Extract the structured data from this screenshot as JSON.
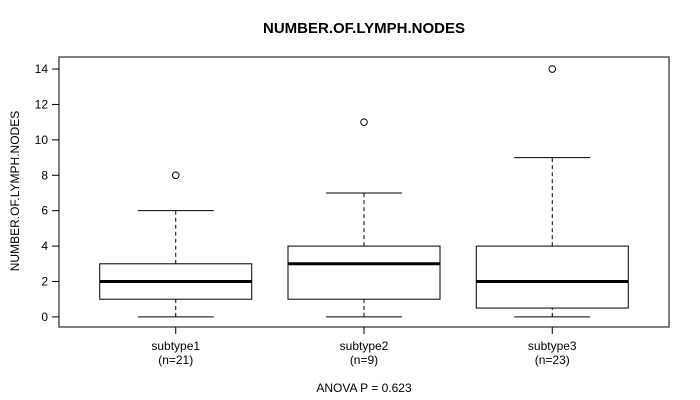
{
  "colors": {
    "foreground": "#000000",
    "background": "#ffffff"
  },
  "chart_data": {
    "type": "boxplot",
    "title": "NUMBER.OF.LYMPH.NODES",
    "ylabel": "NUMBER.OF.LYMPH.NODES",
    "xlabel": "",
    "annotation": "ANOVA P = 0.623",
    "ylim": [
      0,
      14
    ],
    "yticks": [
      0,
      2,
      4,
      6,
      8,
      10,
      12,
      14
    ],
    "grid": false,
    "legend_position": "none",
    "groups": [
      {
        "label": "subtype1",
        "sublabel": "(n=21)",
        "whisker_low": 0,
        "q1": 1,
        "median": 2,
        "q3": 3,
        "whisker_high": 6,
        "outliers": [
          8
        ]
      },
      {
        "label": "subtype2",
        "sublabel": "(n=9)",
        "whisker_low": 0,
        "q1": 1,
        "median": 3,
        "q3": 4,
        "whisker_high": 7,
        "outliers": [
          11
        ]
      },
      {
        "label": "subtype3",
        "sublabel": "(n=23)",
        "whisker_low": 0,
        "q1": 0.5,
        "median": 2,
        "q3": 4,
        "whisker_high": 9,
        "outliers": [
          14
        ]
      }
    ]
  }
}
